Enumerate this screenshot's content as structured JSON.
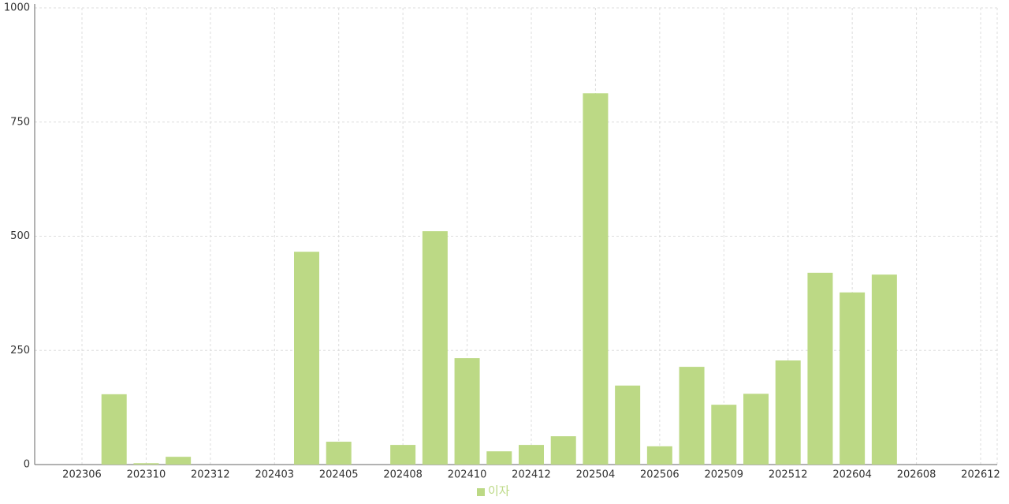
{
  "chart_data": {
    "type": "bar",
    "categories": [
      "202306",
      null,
      "202310",
      null,
      "202312",
      null,
      "202403",
      null,
      "202405",
      null,
      "202408",
      null,
      "202410",
      null,
      "202412",
      null,
      "202504",
      null,
      "202506",
      null,
      "202509",
      null,
      "202512",
      null,
      "202604",
      null,
      "202608",
      null,
      "202612"
    ],
    "series": [
      {
        "name": "이자",
        "color": "#bcd985",
        "values": [
          null,
          154,
          3,
          17,
          null,
          null,
          null,
          466,
          50,
          null,
          43,
          511,
          233,
          29,
          43,
          62,
          813,
          173,
          40,
          214,
          131,
          155,
          228,
          420,
          377,
          416,
          null,
          null,
          null
        ]
      }
    ],
    "ylim": [
      0,
      1000
    ],
    "yticks": [
      0,
      250,
      500,
      750,
      1000
    ],
    "grid": true
  }
}
